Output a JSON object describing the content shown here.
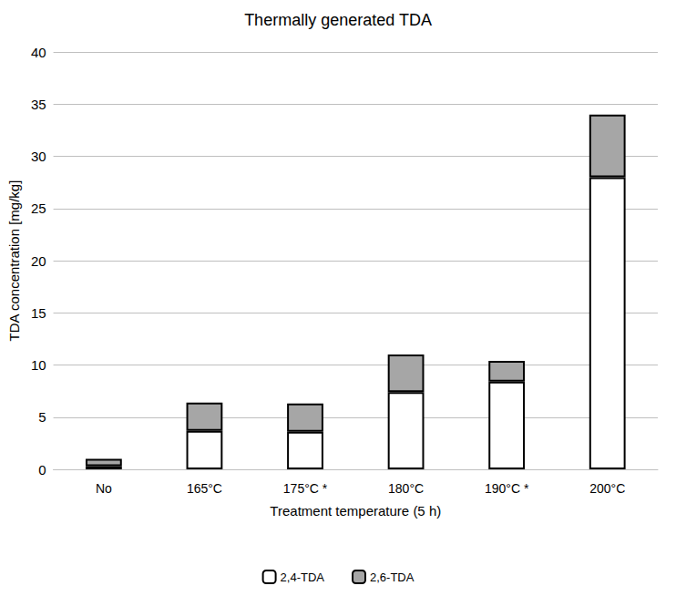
{
  "chart_data": {
    "type": "bar",
    "title": "Thermally generated TDA",
    "x_label": "Treatment temperature (5 h)",
    "y_label": "TDA concentration [mg/kg]",
    "categories": [
      "No",
      "165°C",
      "175°C *",
      "180°C",
      "190°C *",
      "200°C"
    ],
    "series": [
      {
        "name": "2,4-TDA",
        "color": "#ffffff",
        "values": [
          0.3,
          3.7,
          3.6,
          7.4,
          8.4,
          28.0
        ]
      },
      {
        "name": "2,6-TDA",
        "color": "#a6a6a6",
        "values": [
          0.7,
          2.7,
          2.7,
          3.6,
          2.0,
          6.0
        ]
      }
    ],
    "ylim": [
      0,
      40
    ],
    "yticks": [
      0,
      5,
      10,
      15,
      20,
      25,
      30,
      35,
      40
    ],
    "grid": true,
    "stacked": true,
    "legend": "bottom"
  }
}
